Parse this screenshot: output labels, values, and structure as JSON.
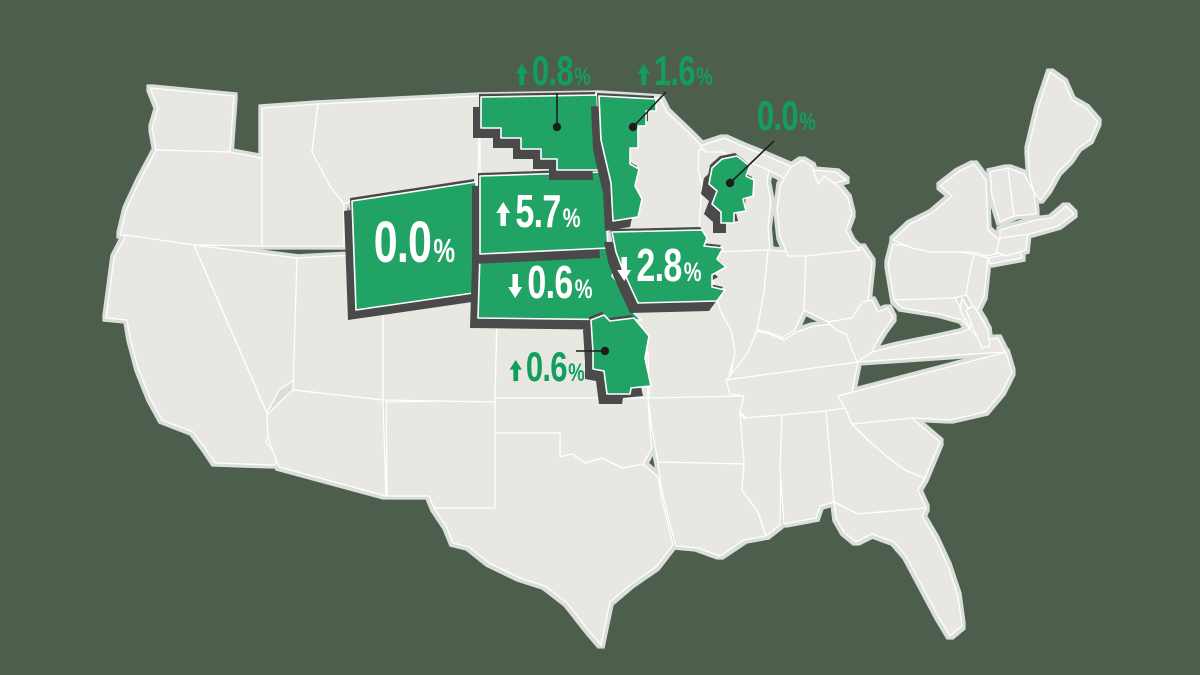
{
  "map": {
    "regions": [
      {
        "id": "wyoming",
        "value": "0.0",
        "direction": "none",
        "label_placement": "inside"
      },
      {
        "id": "south-dakota",
        "value": "5.7",
        "direction": "up",
        "label_placement": "inside"
      },
      {
        "id": "nebraska",
        "value": "0.6",
        "direction": "down",
        "label_placement": "inside"
      },
      {
        "id": "iowa",
        "value": "2.8",
        "direction": "down",
        "label_placement": "inside"
      },
      {
        "id": "north-dakota",
        "value": "0.8",
        "direction": "up",
        "label_placement": "callout"
      },
      {
        "id": "minnesota",
        "value": "1.6",
        "direction": "up",
        "label_placement": "callout"
      },
      {
        "id": "wisconsin-region",
        "value": "0.0",
        "direction": "none",
        "label_placement": "callout"
      },
      {
        "id": "missouri-region",
        "value": "0.6",
        "direction": "up",
        "label_placement": "callout"
      }
    ],
    "symbols": {
      "percent": "%"
    },
    "colors": {
      "background": "#4d5f4c",
      "land": "#e9e7e2",
      "state_border": "#ffffff",
      "highlight": "#22a366",
      "highlight_shadow": "#4a4a4a",
      "callout_text": "#129e5c",
      "inside_label_text": "#ffffff",
      "leader_line": "#1d1d1d"
    }
  }
}
